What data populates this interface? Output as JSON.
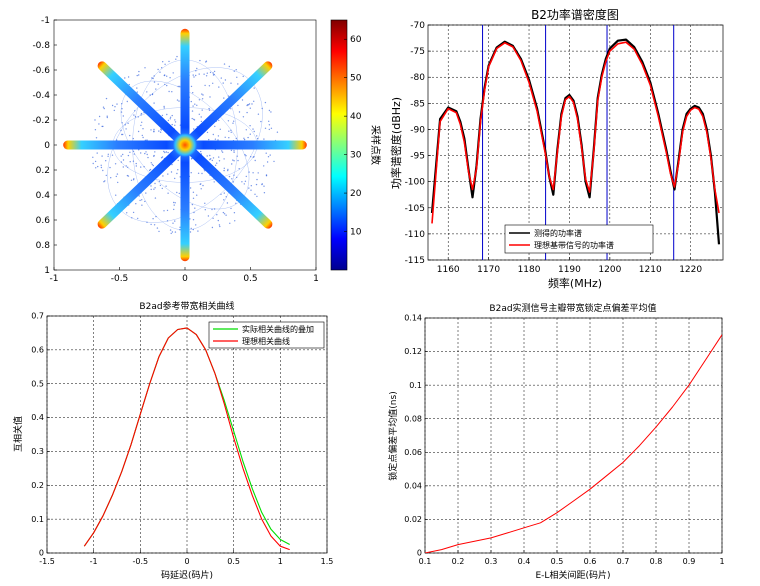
{
  "colors": {
    "measured": "#000000",
    "ideal": "#ff0000",
    "marker": "#0000cc",
    "green": "#00dd00",
    "grid": "#000000"
  },
  "chart_data": [
    {
      "id": "constellation",
      "type": "heatmap",
      "title": "",
      "xlim": [
        -1,
        1
      ],
      "ylim": [
        -1,
        1
      ],
      "y_reversed": true,
      "xticks": [
        "-1",
        "-0.5",
        "0",
        "0.5",
        "1"
      ],
      "yticks": [
        "-1",
        "-0.8",
        "-0.6",
        "-0.4",
        "-0.2",
        "0",
        "0.2",
        "0.4",
        "0.6",
        "0.8",
        "1"
      ],
      "arm_angles_deg": [
        0,
        45,
        90,
        135,
        180,
        225,
        270,
        315
      ],
      "arm_length": 0.93,
      "colorbar": {
        "label": "采样点数",
        "range": [
          0,
          65
        ],
        "ticks": [
          "10",
          "20",
          "30",
          "40",
          "50",
          "60"
        ]
      }
    },
    {
      "id": "psd",
      "type": "line",
      "title": "B2功率谱密度图",
      "xlabel": "频率(MHz)",
      "ylabel": "功率谱密度(dBHz)",
      "xlim": [
        1155,
        1228
      ],
      "ylim": [
        -115,
        -70
      ],
      "xticks": [
        "1160",
        "1170",
        "1180",
        "1190",
        "1200",
        "1210",
        "1220"
      ],
      "yticks": [
        "-70",
        "-75",
        "-80",
        "-85",
        "-90",
        "-95",
        "-100",
        "-105",
        "-110",
        "-115"
      ],
      "grid": true,
      "legend_position": "lower-center",
      "vertical_markers_mhz": [
        1168.5,
        1184.1,
        1199.3,
        1215.8
      ],
      "series": [
        {
          "name": "测得的功率谱",
          "x": [
            1156,
            1158,
            1160,
            1162,
            1163,
            1164,
            1165,
            1166,
            1167,
            1168,
            1169,
            1170,
            1172,
            1174,
            1176,
            1178,
            1180,
            1182,
            1184,
            1185,
            1186,
            1187,
            1188,
            1189,
            1190,
            1191,
            1192,
            1193,
            1194,
            1195,
            1196,
            1197,
            1198,
            1199,
            1200,
            1202,
            1204,
            1206,
            1208,
            1210,
            1212,
            1214,
            1215,
            1216,
            1217,
            1218,
            1219,
            1220,
            1221,
            1222,
            1223,
            1224,
            1225,
            1226,
            1227
          ],
          "y": [
            -106,
            -88,
            -85.8,
            -86.5,
            -88.5,
            -91.8,
            -97.5,
            -103,
            -97,
            -88,
            -82,
            -77.8,
            -74.3,
            -73.2,
            -74,
            -76.5,
            -80.5,
            -86,
            -94,
            -99,
            -102.5,
            -94,
            -87,
            -84,
            -83.4,
            -84.5,
            -87.5,
            -93,
            -100,
            -103,
            -94,
            -84,
            -79.5,
            -76.5,
            -74.5,
            -73,
            -72.8,
            -74.2,
            -77,
            -81,
            -87,
            -94,
            -98,
            -101.5,
            -96,
            -90,
            -87,
            -86,
            -85.5,
            -85.8,
            -87,
            -90,
            -95,
            -102,
            -112
          ]
        },
        {
          "name": "理想基带信号的功率谱",
          "x": [
            1156,
            1158,
            1160,
            1162,
            1163,
            1164,
            1165,
            1166,
            1167,
            1168,
            1169,
            1170,
            1172,
            1174,
            1176,
            1178,
            1180,
            1182,
            1184,
            1185,
            1186,
            1187,
            1188,
            1189,
            1190,
            1191,
            1192,
            1193,
            1194,
            1195,
            1196,
            1197,
            1198,
            1199,
            1200,
            1202,
            1204,
            1206,
            1208,
            1210,
            1212,
            1214,
            1215,
            1216,
            1217,
            1218,
            1219,
            1220,
            1221,
            1222,
            1223,
            1224,
            1225,
            1226,
            1227
          ],
          "y": [
            -108,
            -88.5,
            -86,
            -86.8,
            -89,
            -92.5,
            -98,
            -101.5,
            -97.5,
            -88.5,
            -82.5,
            -78,
            -74.5,
            -73.4,
            -74.2,
            -76.8,
            -81,
            -86.5,
            -94.5,
            -99,
            -101.5,
            -94.5,
            -87.5,
            -84.3,
            -83.7,
            -84.8,
            -88,
            -93.5,
            -99.5,
            -102,
            -94.5,
            -84.5,
            -80,
            -77,
            -75,
            -73.6,
            -73.3,
            -74.6,
            -77.5,
            -81.5,
            -87.5,
            -94.5,
            -98.5,
            -101,
            -96.5,
            -90.5,
            -87.5,
            -86.3,
            -85.8,
            -86.1,
            -87.5,
            -90.5,
            -95.5,
            -101.5,
            -106
          ]
        }
      ]
    },
    {
      "id": "autocorr",
      "type": "line",
      "title": "B2ad参考带宽相关曲线",
      "xlabel": "码延迟(码片)",
      "ylabel": "互相关值",
      "xlim": [
        -1.5,
        1.5
      ],
      "ylim": [
        0,
        0.7
      ],
      "xticks": [
        "-1.5",
        "-1",
        "-0.5",
        "0",
        "0.5",
        "1",
        "1.5"
      ],
      "yticks": [
        "0",
        "0.1",
        "0.2",
        "0.3",
        "0.4",
        "0.5",
        "0.6",
        "0.7"
      ],
      "grid": true,
      "legend_position": "top-right",
      "series": [
        {
          "name": "实际相关曲线的叠加",
          "x": [
            -1.1,
            -1.0,
            -0.9,
            -0.8,
            -0.7,
            -0.6,
            -0.5,
            -0.4,
            -0.3,
            -0.2,
            -0.1,
            0,
            0.1,
            0.2,
            0.3,
            0.4,
            0.5,
            0.6,
            0.7,
            0.8,
            0.9,
            1.0,
            1.1
          ],
          "y": [
            0.02,
            0.06,
            0.11,
            0.17,
            0.24,
            0.32,
            0.41,
            0.5,
            0.58,
            0.635,
            0.66,
            0.665,
            0.645,
            0.6,
            0.53,
            0.45,
            0.36,
            0.27,
            0.19,
            0.12,
            0.07,
            0.04,
            0.025
          ]
        },
        {
          "name": "理想相关曲线",
          "x": [
            -1.1,
            -1.0,
            -0.9,
            -0.8,
            -0.7,
            -0.6,
            -0.5,
            -0.4,
            -0.3,
            -0.2,
            -0.1,
            0,
            0.1,
            0.2,
            0.3,
            0.4,
            0.5,
            0.6,
            0.7,
            0.8,
            0.9,
            1.0,
            1.1
          ],
          "y": [
            0.02,
            0.06,
            0.11,
            0.17,
            0.24,
            0.32,
            0.41,
            0.5,
            0.58,
            0.635,
            0.66,
            0.665,
            0.645,
            0.6,
            0.53,
            0.44,
            0.34,
            0.25,
            0.17,
            0.1,
            0.05,
            0.02,
            0.01
          ]
        }
      ]
    },
    {
      "id": "bias",
      "type": "line",
      "title": "B2ad实测信号主瓣带宽锁定点偏差平均值",
      "xlabel": "E-L相关间距(码片)",
      "ylabel": "锁定点偏差平均值(ns)",
      "xlim": [
        0.1,
        1
      ],
      "ylim": [
        0,
        0.14
      ],
      "xticks": [
        "0.1",
        "0.2",
        "0.3",
        "0.4",
        "0.5",
        "0.6",
        "0.7",
        "0.8",
        "0.9",
        "1"
      ],
      "yticks": [
        "0",
        "0.02",
        "0.04",
        "0.06",
        "0.08",
        "0.1",
        "0.12",
        "0.14"
      ],
      "grid": true,
      "series": [
        {
          "name": "",
          "x": [
            0.1,
            0.15,
            0.2,
            0.25,
            0.3,
            0.35,
            0.4,
            0.45,
            0.5,
            0.55,
            0.6,
            0.65,
            0.7,
            0.75,
            0.8,
            0.85,
            0.9,
            0.95,
            1.0
          ],
          "y": [
            0.0,
            0.002,
            0.005,
            0.007,
            0.009,
            0.012,
            0.015,
            0.018,
            0.024,
            0.031,
            0.038,
            0.046,
            0.054,
            0.064,
            0.075,
            0.087,
            0.1,
            0.115,
            0.13
          ]
        }
      ]
    }
  ]
}
